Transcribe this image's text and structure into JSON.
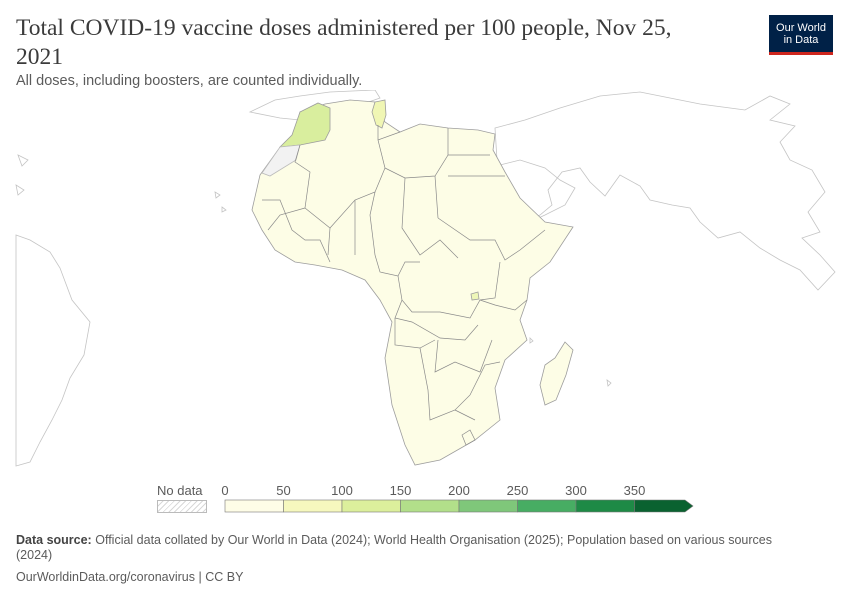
{
  "header": {
    "title": "Total COVID-19 vaccine doses administered per 100 people, Nov 25, 2021",
    "subtitle": "All doses, including boosters, are counted individually."
  },
  "logo": {
    "line1": "Our World",
    "line2": "in Data"
  },
  "legend": {
    "no_data_label": "No data",
    "ticks": [
      "0",
      "50",
      "100",
      "150",
      "200",
      "250",
      "300",
      "350"
    ],
    "colors": [
      "#fefde7",
      "#f6f8be",
      "#dcef9c",
      "#b2df8a",
      "#7fc77a",
      "#47ad63",
      "#1e8a46",
      "#0a6230"
    ]
  },
  "map_colors": {
    "africa_fill": "#fdfde6",
    "morocco_fill": "#d9ee9e",
    "tunisia_fill": "#f0f6b4",
    "rwanda_fill": "#eef7b8",
    "outline": "#9d9d9d",
    "border": "#8a8a8a",
    "other_land_stroke": "#c4c4c4"
  },
  "footer": {
    "source_label": "Data source:",
    "source_text": "Official data collated by Our World in Data (2024); World Health Organisation (2025); Population based on various sources (2024)",
    "url_line": "OurWorldinData.org/coronavirus | CC BY"
  }
}
